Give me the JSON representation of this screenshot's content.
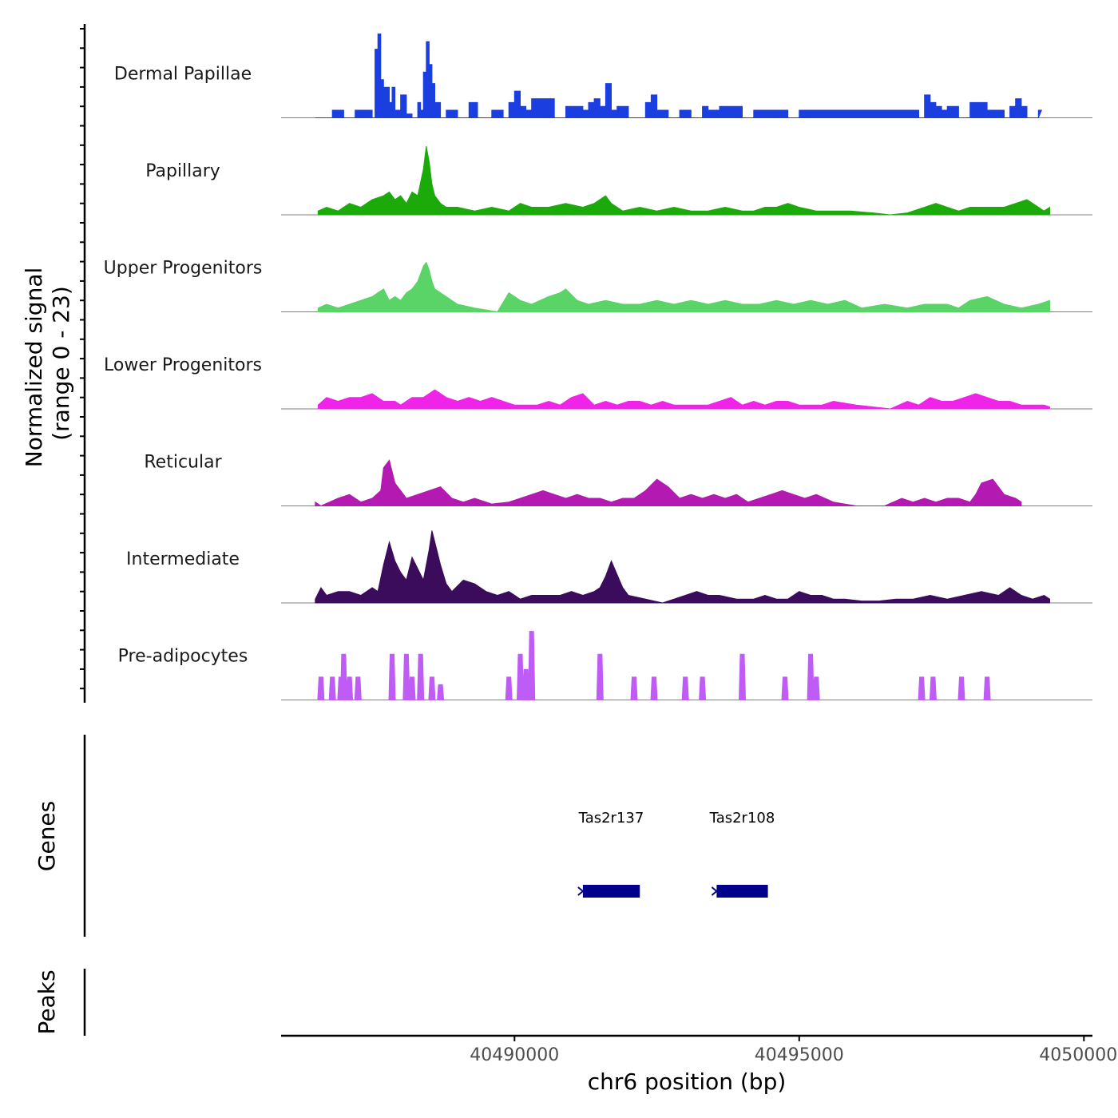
{
  "chart_data": {
    "type": "area",
    "chromosome": "chr6",
    "xlabel": "chr6 position (bp)",
    "ylabel_line1": "Normalized signal",
    "ylabel_line2": "(range 0 - 23)",
    "ylim": [
      0,
      23
    ],
    "xlim": [
      40485900,
      40500150
    ],
    "x_ticks": [
      40490000,
      40495000,
      40500000
    ],
    "x_tick_labels": [
      "40490000",
      "40495000",
      "40500000"
    ],
    "genes_label": "Genes",
    "peaks_label": "Peaks",
    "tracks": [
      {
        "name": "Dermal Papillae",
        "color": "#1a3ee0",
        "style": "blocky",
        "x": [
          40486500,
          40486800,
          40487000,
          40487200,
          40487500,
          40487550,
          40487600,
          40487650,
          40487700,
          40487800,
          40487850,
          40487900,
          40488000,
          40488100,
          40488200,
          40488300,
          40488350,
          40488400,
          40488450,
          40488500,
          40488550,
          40488600,
          40488700,
          40488800,
          40489000,
          40489200,
          40489350,
          40489600,
          40489800,
          40489900,
          40490000,
          40490100,
          40490200,
          40490300,
          40490700,
          40490900,
          40491200,
          40491300,
          40491400,
          40491500,
          40491600,
          40491700,
          40491800,
          40492000,
          40492300,
          40492400,
          40492500,
          40492700,
          40492900,
          40493100,
          40493300,
          40493400,
          40493600,
          40494000,
          40494200,
          40494800,
          40495000,
          40497100,
          40497200,
          40497300,
          40497400,
          40497500,
          40497600,
          40497800,
          40498000,
          40498300,
          40498600,
          40498700,
          40498800,
          40498900,
          40499000,
          40499200
        ],
        "y": [
          0,
          2,
          0,
          2,
          0,
          18,
          22,
          10,
          8,
          4,
          8,
          2,
          6,
          1,
          0,
          4,
          2,
          12,
          20,
          14,
          9,
          4,
          0,
          2,
          0,
          4,
          0,
          2,
          0,
          4,
          7,
          3,
          2,
          5,
          0,
          3,
          2,
          4,
          5,
          3,
          9,
          2,
          3,
          0,
          4,
          6,
          2,
          0,
          2,
          0,
          3,
          2,
          3,
          0,
          2,
          0,
          2,
          0,
          6,
          4,
          3,
          2,
          3,
          0,
          4,
          2,
          0,
          3,
          5,
          3,
          0,
          2
        ],
        "smooth": false
      },
      {
        "name": "Papillary",
        "color": "#1caa0b",
        "style": "smooth",
        "x": [
          40486550,
          40486700,
          40486900,
          40487100,
          40487300,
          40487500,
          40487700,
          40487800,
          40487900,
          40488000,
          40488100,
          40488200,
          40488300,
          40488400,
          40488450,
          40488500,
          40488550,
          40488600,
          40488700,
          40488800,
          40489000,
          40489300,
          40489600,
          40489900,
          40490100,
          40490300,
          40490600,
          40490900,
          40491200,
          40491400,
          40491600,
          40491700,
          40491900,
          40492200,
          40492500,
          40492800,
          40493100,
          40493400,
          40493700,
          40494000,
          40494200,
          40494400,
          40494600,
          40494800,
          40495000,
          40495300,
          40495600,
          40495900,
          40496300,
          40496600,
          40496900,
          40497200,
          40497400,
          40497600,
          40497800,
          40498000,
          40498300,
          40498600,
          40498800,
          40499000,
          40499300,
          40499400
        ],
        "y": [
          1,
          2,
          1,
          3,
          2,
          4,
          5,
          6,
          4,
          5,
          3,
          6,
          5,
          12,
          18,
          14,
          8,
          5,
          3,
          2,
          2,
          1,
          2,
          1,
          3,
          2,
          2,
          3,
          2,
          3,
          5,
          3,
          1,
          2,
          1,
          2,
          1,
          1,
          2,
          1,
          1,
          2,
          2,
          3,
          2,
          1,
          1,
          1,
          0.5,
          0,
          0.5,
          2,
          3,
          2,
          1,
          2,
          2,
          2,
          3,
          4,
          1,
          2
        ]
      },
      {
        "name": "Upper Progenitors",
        "color": "#5ad466",
        "style": "smooth",
        "x": [
          40486550,
          40486700,
          40486900,
          40487100,
          40487300,
          40487500,
          40487700,
          40487800,
          40487900,
          40488000,
          40488100,
          40488200,
          40488300,
          40488400,
          40488450,
          40488500,
          40488550,
          40488600,
          40488800,
          40489000,
          40489300,
          40489700,
          40489900,
          40490100,
          40490300,
          40490600,
          40490800,
          40490900,
          40491100,
          40491300,
          40491600,
          40491900,
          40492200,
          40492500,
          40492800,
          40493100,
          40493400,
          40493700,
          40494000,
          40494300,
          40494600,
          40494900,
          40495200,
          40495500,
          40495800,
          40496100,
          40496500,
          40496900,
          40497200,
          40497400,
          40497600,
          40497800,
          40498000,
          40498300,
          40498600,
          40498900,
          40499200,
          40499400
        ],
        "y": [
          1,
          2,
          1,
          2,
          3,
          4,
          6,
          3,
          4,
          3,
          5,
          6,
          8,
          12,
          13,
          11,
          8,
          6,
          4,
          2,
          1,
          0,
          5,
          3,
          2,
          4,
          5,
          6,
          3,
          2,
          3,
          2,
          2,
          3,
          2,
          3,
          2,
          3,
          2,
          2,
          3,
          2,
          3,
          2,
          3,
          1,
          2,
          1,
          2,
          2,
          2,
          1,
          3,
          4,
          2,
          1,
          2,
          3
        ]
      },
      {
        "name": "Lower Progenitors",
        "color": "#ef24e8",
        "style": "smooth",
        "x": [
          40486550,
          40486700,
          40486900,
          40487100,
          40487300,
          40487500,
          40487700,
          40487900,
          40488000,
          40488200,
          40488400,
          40488500,
          40488600,
          40488800,
          40489000,
          40489200,
          40489400,
          40489600,
          40489800,
          40490000,
          40490200,
          40490400,
          40490600,
          40490800,
          40491000,
          40491200,
          40491400,
          40491600,
          40491800,
          40492000,
          40492200,
          40492400,
          40492600,
          40492800,
          40493000,
          40493200,
          40493400,
          40493600,
          40493800,
          40494000,
          40494200,
          40494400,
          40494600,
          40494800,
          40495000,
          40495200,
          40495400,
          40495600,
          40496000,
          40496600,
          40496900,
          40497100,
          40497300,
          40497500,
          40497700,
          40497900,
          40498100,
          40498300,
          40498500,
          40498700,
          40498900,
          40499100,
          40499300,
          40499400
        ],
        "y": [
          1,
          3,
          2,
          3,
          3,
          4,
          2,
          2,
          1,
          3,
          3,
          4,
          5,
          3,
          2,
          3,
          2,
          3,
          2,
          1,
          1,
          1,
          2,
          1,
          3,
          4,
          1,
          2,
          1,
          2,
          2,
          1,
          2,
          1,
          1,
          1,
          1,
          2,
          3,
          1,
          2,
          1,
          2,
          2,
          1,
          1,
          1,
          2,
          1,
          0,
          2,
          1,
          3,
          2,
          2,
          3,
          4,
          3,
          2,
          2,
          1,
          1,
          1,
          0.5
        ]
      },
      {
        "name": "Reticular",
        "color": "#b41ab1",
        "style": "smooth",
        "x": [
          40486500,
          40486600,
          40486900,
          40487100,
          40487300,
          40487500,
          40487650,
          40487700,
          40487800,
          40487900,
          40488100,
          40488300,
          40488500,
          40488700,
          40488900,
          40489100,
          40489300,
          40489600,
          40489900,
          40490100,
          40490300,
          40490500,
          40490700,
          40490900,
          40491100,
          40491300,
          40491500,
          40491700,
          40491900,
          40492100,
          40492300,
          40492500,
          40492700,
          40492900,
          40493100,
          40493300,
          40493500,
          40493700,
          40493900,
          40494100,
          40494300,
          40494500,
          40494700,
          40494900,
          40495100,
          40495300,
          40495600,
          40496000,
          40496500,
          40496800,
          40497000,
          40497200,
          40497400,
          40497600,
          40497800,
          40498000,
          40498100,
          40498200,
          40498400,
          40498600,
          40498800,
          40498900
        ],
        "y": [
          1,
          0,
          2,
          3,
          1,
          2,
          4,
          10,
          12,
          6,
          2,
          3,
          4,
          5,
          2,
          1,
          2,
          0.5,
          1,
          2,
          3,
          4,
          3,
          2,
          3,
          2,
          2,
          1,
          2,
          2,
          4,
          7,
          5,
          2,
          3,
          2,
          3,
          2,
          3,
          1,
          2,
          3,
          4,
          3,
          2,
          3,
          1,
          0,
          0,
          2,
          1,
          2,
          1,
          2,
          2,
          1,
          3,
          6,
          7,
          3,
          2,
          1
        ]
      },
      {
        "name": "Intermediate",
        "color": "#3b0b5c",
        "style": "smooth",
        "x": [
          40486500,
          40486600,
          40486700,
          40486900,
          40487100,
          40487300,
          40487500,
          40487600,
          40487700,
          40487800,
          40487900,
          40488000,
          40488100,
          40488200,
          40488300,
          40488400,
          40488500,
          40488550,
          40488600,
          40488700,
          40488800,
          40488900,
          40489100,
          40489300,
          40489500,
          40489700,
          40489900,
          40490100,
          40490300,
          40490600,
          40490800,
          40491000,
          40491200,
          40491400,
          40491500,
          40491600,
          40491700,
          40491900,
          40492000,
          40492600,
          40492800,
          40493000,
          40493200,
          40493400,
          40493600,
          40493900,
          40494200,
          40494400,
          40494600,
          40494800,
          40495000,
          40495200,
          40495400,
          40495600,
          40495800,
          40496100,
          40496400,
          40496700,
          40497000,
          40497300,
          40497600,
          40497900,
          40498200,
          40498500,
          40498700,
          40498900,
          40499100,
          40499300,
          40499400
        ],
        "y": [
          1,
          4,
          2,
          3,
          3,
          2,
          4,
          3,
          10,
          16,
          11,
          8,
          6,
          12,
          9,
          6,
          14,
          19,
          16,
          10,
          5,
          3,
          6,
          5,
          3,
          2,
          3,
          1,
          2,
          2,
          2,
          3,
          2,
          3,
          4,
          7,
          11,
          4,
          2,
          0,
          1,
          2,
          3,
          2,
          2,
          1,
          1,
          2,
          1,
          1,
          3,
          2,
          2,
          1,
          1,
          0.5,
          0.5,
          1,
          1,
          2,
          1,
          2,
          3,
          2,
          4,
          2,
          1,
          2,
          1
        ]
      },
      {
        "name": "Pre-adipocytes",
        "color": "#be5cf5",
        "style": "peaks",
        "x": [
          40486600,
          40486800,
          40486950,
          40487000,
          40487100,
          40487250,
          40487850,
          40488100,
          40488200,
          40488350,
          40488550,
          40488700,
          40489900,
          40490100,
          40490200,
          40490300,
          40491500,
          40492100,
          40492450,
          40493000,
          40493300,
          40494000,
          40494750,
          40495200,
          40495300,
          40497150,
          40497350,
          40497850,
          40498300
        ],
        "y": [
          6,
          6,
          6,
          12,
          6,
          6,
          12,
          12,
          6,
          12,
          6,
          4,
          6,
          12,
          8,
          18,
          12,
          6,
          6,
          6,
          6,
          12,
          6,
          12,
          6,
          6,
          6,
          6,
          6
        ]
      }
    ],
    "genes": [
      {
        "name": "Tas2r137",
        "start": 40491200,
        "end": 40492200
      },
      {
        "name": "Tas2r108",
        "start": 40493550,
        "end": 40494450
      }
    ]
  },
  "colors": {
    "gene_body": "#00008b",
    "axis": "#000000",
    "baseline": "#808080"
  }
}
